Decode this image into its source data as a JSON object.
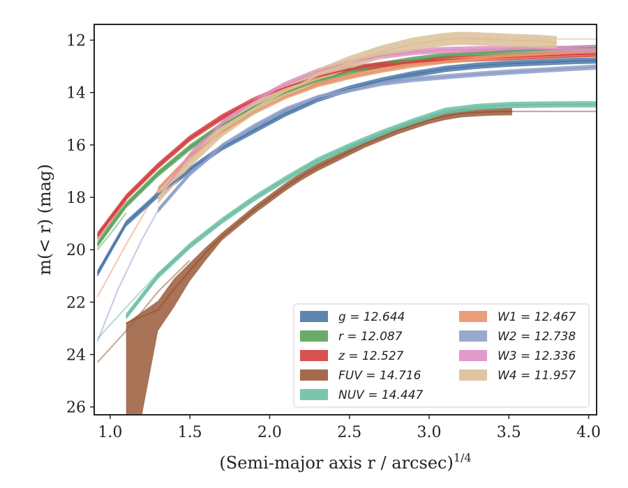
{
  "chart_data": {
    "type": "line",
    "xlabel": "(Semi-major axis r / arcsec)",
    "xlabel_sup": "1/4",
    "ylabel": "m(< r) (mag)",
    "xlim": [
      0.9,
      4.05
    ],
    "ylim": [
      26.3,
      11.4
    ],
    "y_inverted": true,
    "xticks": [
      1.0,
      1.5,
      2.0,
      2.5,
      3.0,
      3.5,
      4.0
    ],
    "xtick_labels": [
      "1.0",
      "1.5",
      "2.0",
      "2.5",
      "3.0",
      "3.5",
      "4.0"
    ],
    "yticks": [
      12,
      14,
      16,
      18,
      20,
      22,
      24,
      26
    ],
    "ytick_labels": [
      "12",
      "14",
      "16",
      "18",
      "20",
      "22",
      "24",
      "26"
    ],
    "grid": false,
    "legend_position": "lower-right",
    "series": [
      {
        "name": "g",
        "legend": "g = 12.644",
        "color": "#4c78a8",
        "band": 0.12,
        "x": [
          0.92,
          1.1,
          1.3,
          1.5,
          1.7,
          1.9,
          2.1,
          2.3,
          2.5,
          2.7,
          2.9,
          3.1,
          3.3,
          3.5,
          3.7,
          3.9,
          4.05
        ],
        "y": [
          20.9,
          19.0,
          17.9,
          16.95,
          16.1,
          15.45,
          14.8,
          14.25,
          13.85,
          13.55,
          13.3,
          13.1,
          12.98,
          12.9,
          12.85,
          12.8,
          12.78
        ],
        "faded": [
          [
            0.92,
            21.0
          ],
          [
            1.0,
            20.1
          ],
          [
            1.1,
            19.0
          ]
        ]
      },
      {
        "name": "r",
        "legend": "r = 12.087",
        "color": "#5aa25a",
        "band": 0.12,
        "x": [
          0.92,
          1.1,
          1.3,
          1.5,
          1.7,
          1.9,
          2.1,
          2.3,
          2.5,
          2.7,
          2.9,
          3.1,
          3.3,
          3.5,
          3.7,
          3.9,
          4.05
        ],
        "y": [
          19.8,
          18.3,
          17.1,
          16.1,
          15.25,
          14.55,
          14.0,
          13.55,
          13.2,
          12.95,
          12.75,
          12.6,
          12.5,
          12.42,
          12.37,
          12.33,
          12.3
        ],
        "faded": [
          [
            0.92,
            20.0
          ],
          [
            1.0,
            19.4
          ],
          [
            1.1,
            18.6
          ]
        ]
      },
      {
        "name": "z",
        "legend": "z = 12.527",
        "color": "#d43f3f",
        "band": 0.12,
        "x": [
          0.92,
          1.1,
          1.3,
          1.5,
          1.7,
          1.9,
          2.1,
          2.3,
          2.5,
          2.7,
          2.9,
          3.1,
          3.3,
          3.5,
          3.7,
          3.9,
          4.05
        ],
        "y": [
          19.45,
          18.0,
          16.8,
          15.75,
          14.95,
          14.3,
          13.8,
          13.4,
          13.1,
          12.95,
          12.85,
          12.75,
          12.7,
          12.65,
          12.6,
          12.55,
          12.52
        ],
        "faded": [
          [
            0.92,
            19.6
          ],
          [
            1.0,
            19.0
          ],
          [
            1.1,
            18.1
          ]
        ]
      },
      {
        "name": "FUV",
        "legend": "FUV = 14.716",
        "color": "#9a5a3a",
        "band": 0.15,
        "x": [
          1.1,
          1.3,
          1.4,
          1.5,
          1.6,
          1.7,
          1.8,
          1.9,
          2.0,
          2.1,
          2.2,
          2.3,
          2.4,
          2.5,
          2.6,
          2.7,
          2.8,
          2.9,
          3.0,
          3.1,
          3.2,
          3.3,
          3.4,
          3.52
        ],
        "y": [
          22.8,
          22.3,
          21.5,
          20.8,
          20.1,
          19.5,
          19.0,
          18.5,
          18.05,
          17.6,
          17.2,
          16.85,
          16.55,
          16.25,
          15.95,
          15.7,
          15.45,
          15.25,
          15.05,
          14.9,
          14.8,
          14.76,
          14.73,
          14.72
        ],
        "lower": [
          [
            1.1,
            26.6
          ],
          [
            1.2,
            26.5
          ],
          [
            1.3,
            23.1
          ],
          [
            1.4,
            22.2
          ],
          [
            1.5,
            21.2
          ],
          [
            1.6,
            20.4
          ]
        ],
        "upper": [
          [
            1.1,
            22.8
          ],
          [
            1.3,
            21.95
          ],
          [
            1.4,
            21.1
          ],
          [
            1.5,
            20.5
          ],
          [
            1.6,
            19.9
          ]
        ],
        "faded": [
          [
            0.92,
            24.3
          ],
          [
            1.1,
            23.1
          ],
          [
            1.3,
            21.6
          ],
          [
            1.5,
            20.4
          ]
        ],
        "tail": [
          [
            3.52,
            14.72
          ],
          [
            4.05,
            14.72
          ]
        ]
      },
      {
        "name": "NUV",
        "legend": "NUV = 14.447",
        "color": "#6dbfa4",
        "band": 0.12,
        "x": [
          1.1,
          1.3,
          1.5,
          1.7,
          1.9,
          2.1,
          2.3,
          2.5,
          2.7,
          2.9,
          3.1,
          3.3,
          3.5,
          3.7,
          3.9,
          4.05
        ],
        "y": [
          22.55,
          21.0,
          19.85,
          18.9,
          18.05,
          17.3,
          16.6,
          16.05,
          15.55,
          15.1,
          14.7,
          14.55,
          14.48,
          14.46,
          14.45,
          14.45
        ],
        "faded": [
          [
            0.92,
            23.4
          ],
          [
            1.1,
            22.2
          ],
          [
            1.3,
            20.9
          ],
          [
            1.5,
            19.9
          ]
        ]
      },
      {
        "name": "W1",
        "legend": "W1 = 12.467",
        "color": "#e8956b",
        "band": 0.1,
        "x": [
          1.3,
          1.5,
          1.7,
          1.9,
          2.1,
          2.3,
          2.5,
          2.7,
          2.9,
          3.1,
          3.3,
          3.5,
          3.7,
          3.9,
          4.05
        ],
        "y": [
          17.7,
          16.45,
          15.5,
          14.75,
          14.15,
          13.7,
          13.4,
          13.15,
          12.95,
          12.8,
          12.7,
          12.62,
          12.56,
          12.5,
          12.47
        ],
        "faded": [
          [
            0.92,
            21.8
          ],
          [
            1.1,
            19.8
          ],
          [
            1.3,
            17.7
          ]
        ]
      },
      {
        "name": "W2",
        "legend": "W2 = 12.738",
        "color": "#8e9fc8",
        "band": 0.1,
        "x": [
          1.3,
          1.5,
          1.7,
          1.9,
          2.1,
          2.3,
          2.5,
          2.7,
          2.9,
          3.1,
          3.3,
          3.5,
          3.7,
          3.9,
          4.05
        ],
        "y": [
          18.5,
          17.1,
          16.05,
          15.3,
          14.65,
          14.2,
          13.9,
          13.65,
          13.5,
          13.4,
          13.3,
          13.22,
          13.15,
          13.08,
          13.03
        ],
        "faded": [
          [
            0.92,
            23.5
          ],
          [
            1.05,
            21.5
          ],
          [
            1.2,
            19.6
          ],
          [
            1.3,
            18.5
          ]
        ]
      },
      {
        "name": "W3",
        "legend": "W3 = 12.336",
        "color": "#de8fc4",
        "band": 0.12,
        "x": [
          1.3,
          1.5,
          1.7,
          1.9,
          2.1,
          2.3,
          2.5,
          2.7,
          2.9,
          3.1,
          3.3,
          3.5,
          3.7,
          3.9,
          4.05
        ],
        "y": [
          18.0,
          16.4,
          15.2,
          14.35,
          13.7,
          13.2,
          12.85,
          12.6,
          12.45,
          12.38,
          12.35,
          12.34,
          12.34,
          12.34,
          12.34
        ]
      },
      {
        "name": "W4",
        "legend": "W4 = 11.957",
        "color": "#dcbf99",
        "band": 0.25,
        "x": [
          1.3,
          1.5,
          1.7,
          1.9,
          2.1,
          2.3,
          2.5,
          2.7,
          2.9,
          3.1,
          3.2,
          3.3,
          3.5,
          3.7,
          3.8
        ],
        "y": [
          18.0,
          16.6,
          15.45,
          14.6,
          13.95,
          13.35,
          12.85,
          12.45,
          12.15,
          11.97,
          11.93,
          11.95,
          12.0,
          12.05,
          12.1
        ],
        "tail": [
          [
            3.8,
            11.96
          ],
          [
            4.05,
            11.96
          ]
        ]
      }
    ]
  }
}
